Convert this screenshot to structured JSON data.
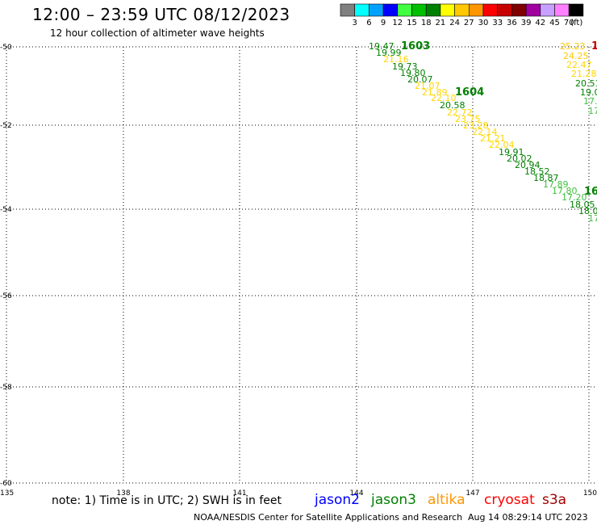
{
  "header": {
    "title": "12:00 – 23:59 UTC 08/12/2023",
    "subtitle": "12 hour collection of altimeter wave heights"
  },
  "legend": {
    "unit": "(ft)",
    "bins": [
      {
        "label": "3",
        "color": "#808080"
      },
      {
        "label": "6",
        "color": "#00ffff"
      },
      {
        "label": "9",
        "color": "#00a0ff"
      },
      {
        "label": "12",
        "color": "#0000ff"
      },
      {
        "label": "15",
        "color": "#40ff40"
      },
      {
        "label": "18",
        "color": "#00c000"
      },
      {
        "label": "21",
        "color": "#008000"
      },
      {
        "label": "24",
        "color": "#ffff00"
      },
      {
        "label": "27",
        "color": "#ffc800"
      },
      {
        "label": "30",
        "color": "#ff9600"
      },
      {
        "label": "33",
        "color": "#ff0000"
      },
      {
        "label": "36",
        "color": "#c80000"
      },
      {
        "label": "39",
        "color": "#800000"
      },
      {
        "label": "42",
        "color": "#a000a0"
      },
      {
        "label": "45",
        "color": "#c8a0ff"
      },
      {
        "label": "70",
        "color": "#ff80ff"
      },
      {
        "label": "",
        "color": "#000000"
      }
    ]
  },
  "map": {
    "lat_ticks": [
      "-50",
      "-52",
      "-54",
      "-56",
      "-58",
      "-60"
    ],
    "lon_ticks": [
      "135",
      "138",
      "141",
      "144",
      "147",
      "150"
    ],
    "observations": [
      {
        "text": "19.47",
        "color": "#008000"
      },
      {
        "text": "19.99",
        "color": "#008000"
      },
      {
        "text": "21.16",
        "color": "#ffd700"
      },
      {
        "text": "19.73",
        "color": "#008000"
      },
      {
        "text": "19.80",
        "color": "#008000"
      },
      {
        "text": "20.07",
        "color": "#008000"
      },
      {
        "text": "21.07",
        "color": "#ffd700"
      },
      {
        "text": "21.89",
        "color": "#ffd700"
      },
      {
        "text": "22.10",
        "color": "#ffd700"
      },
      {
        "text": "20.58",
        "color": "#008000"
      },
      {
        "text": "22.72",
        "color": "#ffd700"
      },
      {
        "text": "23.75",
        "color": "#ffd700"
      },
      {
        "text": "23.28",
        "color": "#ffd700"
      },
      {
        "text": "22.14",
        "color": "#ffd700"
      },
      {
        "text": "21.21",
        "color": "#ffd700"
      },
      {
        "text": "22.04",
        "color": "#ffd700"
      },
      {
        "text": "19.91",
        "color": "#008000"
      },
      {
        "text": "20.02",
        "color": "#008000"
      },
      {
        "text": "20.94",
        "color": "#008000"
      },
      {
        "text": "18.52",
        "color": "#008000"
      },
      {
        "text": "18.87",
        "color": "#008000"
      },
      {
        "text": "17.89",
        "color": "#40c040"
      },
      {
        "text": "17.80",
        "color": "#40c040"
      },
      {
        "text": "17.20",
        "color": "#40c040"
      },
      {
        "text": "18.05",
        "color": "#008000"
      },
      {
        "text": "18.0",
        "color": "#008000"
      },
      {
        "text": "17",
        "color": "#40c040"
      },
      {
        "text": "25.23",
        "color": "#ffc800"
      },
      {
        "text": "24.25",
        "color": "#ffc800"
      },
      {
        "text": "22.47",
        "color": "#ffd700"
      },
      {
        "text": "21.28",
        "color": "#ffd700"
      },
      {
        "text": "20.51",
        "color": "#008000"
      },
      {
        "text": "19.0",
        "color": "#008000"
      },
      {
        "text": "17.",
        "color": "#40c040"
      },
      {
        "text": "17",
        "color": "#40c040"
      }
    ],
    "time_labels": [
      {
        "text": "1603",
        "color": "#008000"
      },
      {
        "text": "1604",
        "color": "#008000"
      },
      {
        "text": "16",
        "color": "#008000"
      },
      {
        "text": "1",
        "color": "#c80000"
      }
    ]
  },
  "footer": {
    "note": "note: 1) Time is in UTC; 2) SWH is in feet",
    "satellites": [
      {
        "name": "jason2",
        "color": "#0000ff"
      },
      {
        "name": "jason3",
        "color": "#008000"
      },
      {
        "name": "altika",
        "color": "#ff9600"
      },
      {
        "name": "cryosat",
        "color": "#ff0000"
      },
      {
        "name": "s3a",
        "color": "#a00000"
      }
    ],
    "credit": "NOAA/NESDIS Center for Satellite Applications and Research",
    "timestamp": "Aug 14 08:29:14 UTC 2023"
  }
}
